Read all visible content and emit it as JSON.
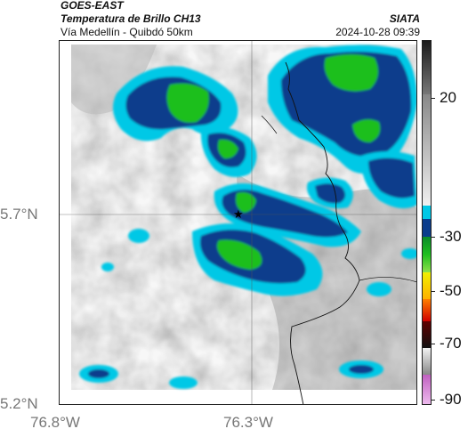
{
  "header": {
    "satellite": "GOES-EAST",
    "product": "Temperatura de Brillo CH13",
    "region": "Vía Medellín - Quibdó 50km",
    "agency": "SIATA",
    "datetime": "2024-10-28 09:39"
  },
  "map": {
    "lat_labels": [
      "5.7°N",
      "5.2°N"
    ],
    "lon_labels": [
      "76.8°W",
      "76.3°W"
    ],
    "marker": "star-marker"
  },
  "colorbar": {
    "tick_labels": [
      "20",
      "-30",
      "-50",
      "-70",
      "-90"
    ],
    "colors": {
      "gray_light": "#e8e8e8",
      "gray_dark": "#555555",
      "cyan": "#00c8e6",
      "blue": "#0a3c8c",
      "green": "#1fbf1f",
      "yellow": "#f0f000",
      "orange": "#ff8000",
      "red": "#d00000",
      "black": "#101010",
      "magenta": "#c060c0"
    }
  }
}
